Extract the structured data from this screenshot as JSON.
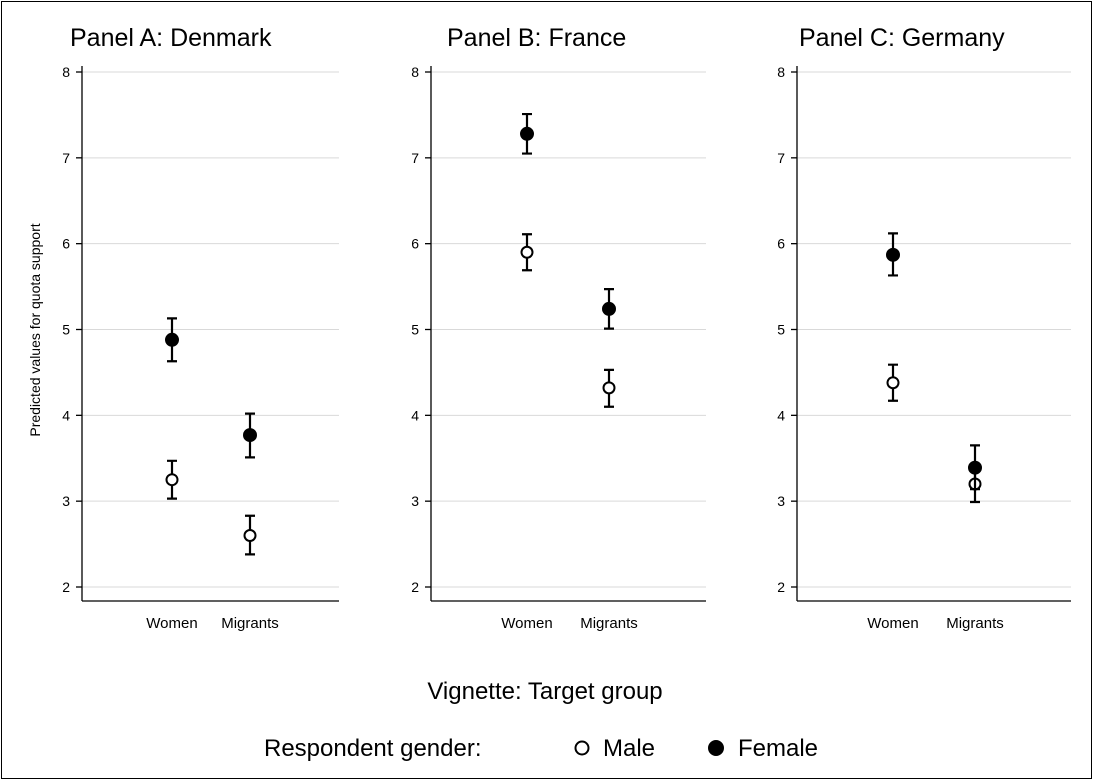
{
  "chart_data": [
    {
      "type": "scatter",
      "title": "Panel A: Denmark",
      "categories": [
        "Women",
        "Migrants"
      ],
      "ylim": [
        2,
        8
      ],
      "yticks": [
        2,
        3,
        4,
        5,
        6,
        7,
        8
      ],
      "grid": true,
      "series": [
        {
          "name": "Male",
          "marker": "hollow-circle",
          "values": [
            3.25,
            2.6
          ],
          "ci_low": [
            3.03,
            2.38
          ],
          "ci_high": [
            3.47,
            2.83
          ]
        },
        {
          "name": "Female",
          "marker": "filled-circle",
          "values": [
            4.88,
            3.77
          ],
          "ci_low": [
            4.63,
            3.51
          ],
          "ci_high": [
            5.13,
            4.02
          ]
        }
      ]
    },
    {
      "type": "scatter",
      "title": "Panel B: France",
      "categories": [
        "Women",
        "Migrants"
      ],
      "ylim": [
        2,
        8
      ],
      "yticks": [
        2,
        3,
        4,
        5,
        6,
        7,
        8
      ],
      "grid": true,
      "series": [
        {
          "name": "Male",
          "marker": "hollow-circle",
          "values": [
            5.9,
            4.32
          ],
          "ci_low": [
            5.69,
            4.1
          ],
          "ci_high": [
            6.11,
            4.53
          ]
        },
        {
          "name": "Female",
          "marker": "filled-circle",
          "values": [
            7.28,
            5.24
          ],
          "ci_low": [
            7.05,
            5.01
          ],
          "ci_high": [
            7.51,
            5.47
          ]
        }
      ]
    },
    {
      "type": "scatter",
      "title": "Panel C: Germany",
      "categories": [
        "Women",
        "Migrants"
      ],
      "ylim": [
        2,
        8
      ],
      "yticks": [
        2,
        3,
        4,
        5,
        6,
        7,
        8
      ],
      "grid": true,
      "series": [
        {
          "name": "Male",
          "marker": "hollow-circle",
          "values": [
            4.38,
            3.2
          ],
          "ci_low": [
            4.17,
            2.99
          ],
          "ci_high": [
            4.59,
            3.4
          ]
        },
        {
          "name": "Female",
          "marker": "filled-circle",
          "values": [
            5.87,
            3.39
          ],
          "ci_low": [
            5.63,
            3.14
          ],
          "ci_high": [
            6.12,
            3.65
          ]
        }
      ]
    }
  ],
  "ylabel": "Predicted values for quota support",
  "xlabel": "Vignette: Target group",
  "legend": {
    "title": "Respondent gender:",
    "placement": "bottom-center",
    "entries": [
      {
        "name": "Male",
        "marker": "hollow-circle"
      },
      {
        "name": "Female",
        "marker": "filled-circle"
      }
    ]
  }
}
